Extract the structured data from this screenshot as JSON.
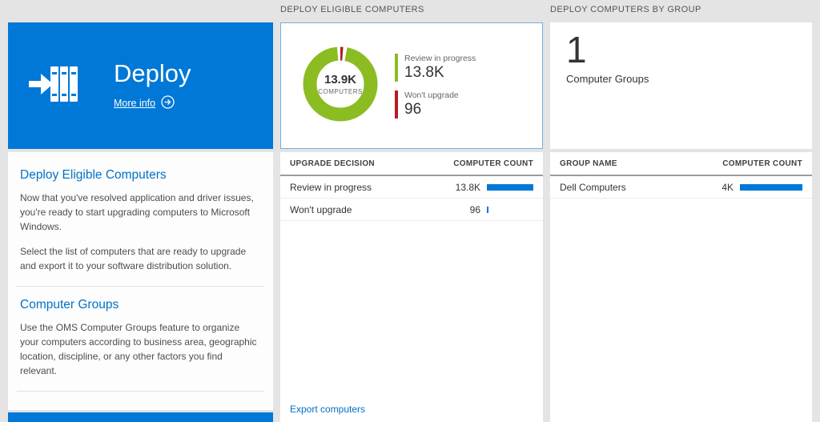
{
  "colors": {
    "tile_blue": "#0078d7",
    "heading_blue": "#0072c6",
    "donut_green": "#8bbd23",
    "status_red": "#b81c20",
    "bar_blue": "#0078d7",
    "background": "#e4e4e4"
  },
  "left_panel": {
    "tile": {
      "title": "Deploy",
      "more_info_label": "More info"
    },
    "sections": [
      {
        "heading": "Deploy Eligible Computers",
        "paragraphs": [
          "Now that you've resolved application and driver issues, you're ready to start upgrading computers to Microsoft Windows.",
          "Select the list of computers that are ready to upgrade and export it to your software distribution solution."
        ]
      },
      {
        "heading": "Computer Groups",
        "paragraphs": [
          "Use the OMS Computer Groups feature to organize your computers according to business area, geographic location, discipline, or any other factors you find relevant."
        ]
      }
    ]
  },
  "eligible": {
    "title": "DEPLOY ELIGIBLE COMPUTERS",
    "donut": {
      "center_value": "13.9K",
      "center_label": "COMPUTERS",
      "segments": [
        {
          "label": "Review in progress",
          "value": "13.8K",
          "color": "#8bbd23"
        },
        {
          "label": "Won't upgrade",
          "value": "96",
          "color": "#b81c20"
        }
      ]
    },
    "table": {
      "col_label": "UPGRADE DECISION",
      "col_value": "COMPUTER COUNT",
      "rows": [
        {
          "label": "Review in progress",
          "value": "13.8K",
          "bar_pct": 100
        },
        {
          "label": "Won't upgrade",
          "value": "96",
          "bar_pct": 1
        }
      ]
    },
    "export_link": "Export computers"
  },
  "groups": {
    "title": "DEPLOY COMPUTERS BY GROUP",
    "count_value": "1",
    "count_label": "Computer Groups",
    "table": {
      "col_label": "GROUP NAME",
      "col_value": "COMPUTER COUNT",
      "rows": [
        {
          "label": "Dell Computers",
          "value": "4K",
          "bar_pct": 100
        }
      ]
    }
  }
}
